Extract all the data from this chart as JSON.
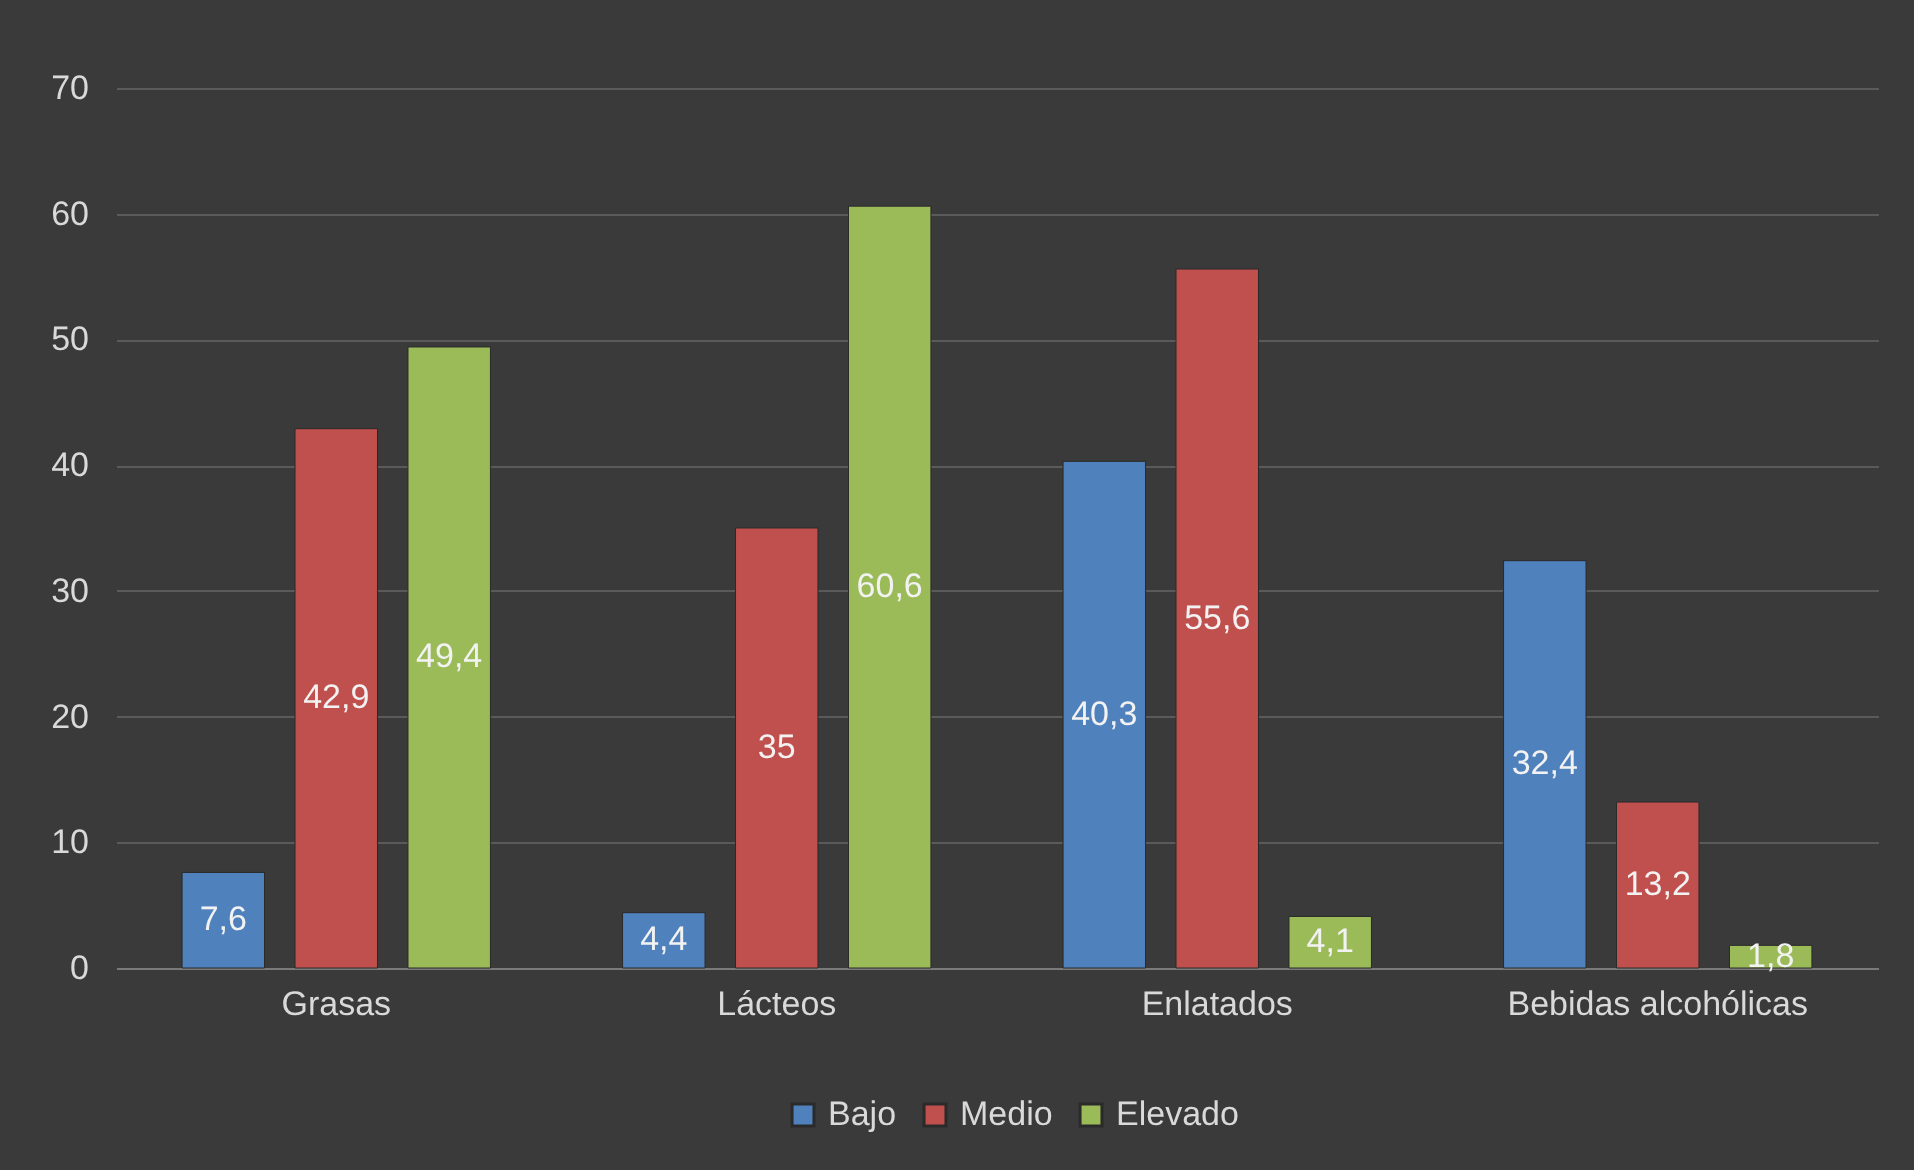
{
  "chart_data": {
    "type": "bar",
    "categories": [
      "Grasas",
      "Lácteos",
      "Enlatados",
      "Bebidas alcohólicas"
    ],
    "series": [
      {
        "name": "Bajo",
        "color": "#4f81bd",
        "values": [
          7.6,
          4.4,
          40.3,
          32.4
        ],
        "value_labels": [
          "7,6",
          "4,4",
          "40,3",
          "32,4"
        ]
      },
      {
        "name": "Medio",
        "color": "#c0504d",
        "values": [
          42.9,
          35,
          55.6,
          13.2
        ],
        "value_labels": [
          "42,9",
          "35",
          "55,6",
          "13,2"
        ]
      },
      {
        "name": "Elevado",
        "color": "#9bbb59",
        "values": [
          49.4,
          60.6,
          4.1,
          1.8
        ],
        "value_labels": [
          "49,4",
          "60,6",
          "4,1",
          "1,8"
        ]
      }
    ],
    "ylim": [
      0,
      70
    ],
    "yticks": [
      0,
      10,
      20,
      30,
      40,
      50,
      60,
      70
    ],
    "grid": "y",
    "legend": "bottom"
  }
}
